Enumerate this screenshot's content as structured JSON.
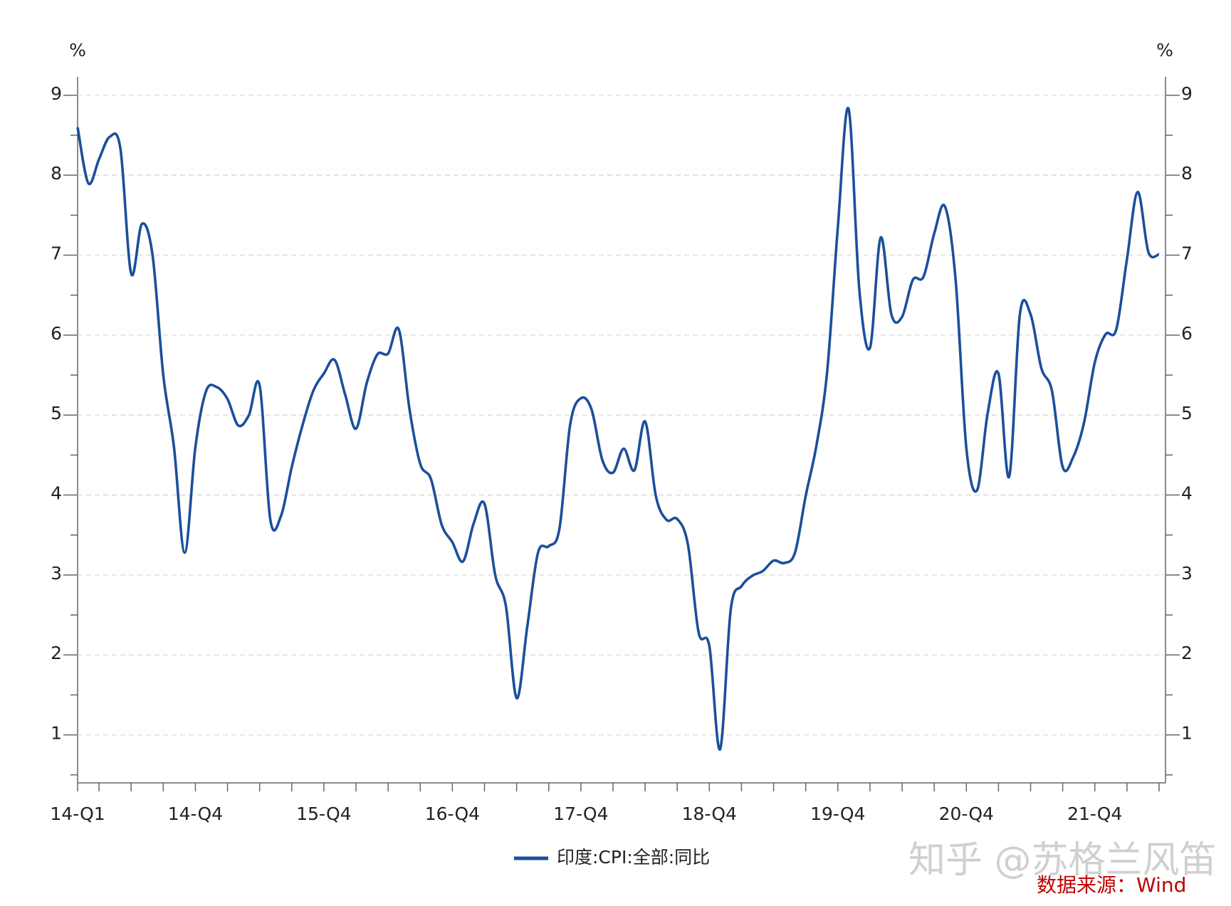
{
  "chart_data": {
    "type": "line",
    "y_unit": "%",
    "y2_unit": "%",
    "categories": [
      "14-Q1",
      null,
      null,
      null,
      null,
      null,
      null,
      null,
      null,
      null,
      null,
      "14-Q4",
      null,
      null,
      null,
      null,
      null,
      null,
      null,
      null,
      null,
      null,
      null,
      "15-Q4",
      null,
      null,
      null,
      null,
      null,
      null,
      null,
      null,
      null,
      null,
      null,
      "16-Q4",
      null,
      null,
      null,
      null,
      null,
      null,
      null,
      null,
      null,
      null,
      null,
      "17-Q4",
      null,
      null,
      null,
      null,
      null,
      null,
      null,
      null,
      null,
      null,
      null,
      "18-Q4",
      null,
      null,
      null,
      null,
      null,
      null,
      null,
      null,
      null,
      null,
      null,
      "19-Q4",
      null,
      null,
      null,
      null,
      null,
      null,
      null,
      null,
      null,
      null,
      null,
      "20-Q4",
      null,
      null,
      null,
      null,
      null,
      null,
      null,
      null,
      null,
      null,
      null,
      "21-Q4",
      null,
      null,
      null,
      null,
      null,
      null
    ],
    "series": [
      {
        "name": "印度:CPI:全部:同比",
        "color": "#1b4f9b",
        "values": [
          8.6,
          7.9,
          8.2,
          8.48,
          8.33,
          6.77,
          7.39,
          7.0,
          5.5,
          4.6,
          3.28,
          4.6,
          5.3,
          5.35,
          5.2,
          4.87,
          5.0,
          5.37,
          3.69,
          3.74,
          4.35,
          4.87,
          5.3,
          5.52,
          5.69,
          5.25,
          4.83,
          5.4,
          5.76,
          5.77,
          6.07,
          5.07,
          4.39,
          4.2,
          3.63,
          3.41,
          3.17,
          3.65,
          3.89,
          3.0,
          2.61,
          1.46,
          2.36,
          3.28,
          3.36,
          3.58,
          4.88,
          5.21,
          5.07,
          4.44,
          4.28,
          4.58,
          4.31,
          4.92,
          3.99,
          3.69,
          3.7,
          3.38,
          2.28,
          2.11,
          0.82,
          2.57,
          2.86,
          2.99,
          3.05,
          3.18,
          3.15,
          3.28,
          3.99,
          4.62,
          5.54,
          7.35,
          8.83,
          6.58,
          5.84,
          7.22,
          6.26,
          6.23,
          6.69,
          6.73,
          7.27,
          7.61,
          6.69,
          4.59,
          4.06,
          5.03,
          5.52,
          4.23,
          6.26,
          6.26,
          5.59,
          5.3,
          4.35,
          4.48,
          4.91,
          5.66,
          6.01,
          6.07,
          6.95,
          7.79,
          7.04,
          7.01
        ]
      }
    ],
    "ylim": [
      0.4,
      9.23
    ],
    "yticks": [
      1,
      2,
      3,
      4,
      5,
      6,
      7,
      8,
      9
    ],
    "y2lim": [
      0.4,
      9.23
    ],
    "y2ticks": [
      1,
      2,
      3,
      4,
      5,
      6,
      7,
      8,
      9
    ],
    "grid": true,
    "legend": "bottom",
    "watermark": "知乎 @苏格兰风笛",
    "source": "数据来源：Wind"
  }
}
